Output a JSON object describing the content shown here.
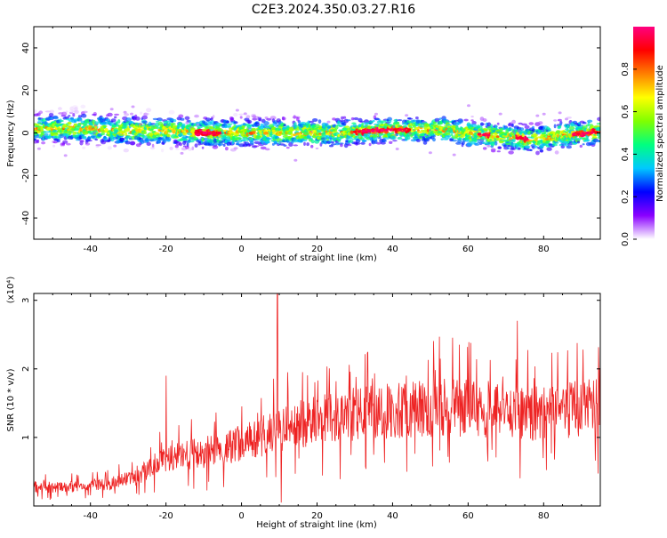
{
  "figure": {
    "title": "C2E3.2024.350.03.27.R16"
  },
  "chart_data": [
    {
      "type": "heatmap",
      "xlabel": "Height of straight line (km)",
      "ylabel": "Frequency (Hz)",
      "xlim": [
        -55,
        95
      ],
      "ylim": [
        -50,
        50
      ],
      "x_ticks": [
        "-40",
        "-20",
        "0",
        "20",
        "40",
        "60",
        "80"
      ],
      "y_ticks": [
        "-40",
        "-20",
        "0",
        "20",
        "40"
      ],
      "colorbar": {
        "label": "Normalized spectral amplitude",
        "range": [
          0,
          1
        ],
        "ticks": [
          "0.0",
          "0.2",
          "0.4",
          "0.6",
          "0.8"
        ],
        "colors": [
          "#ffffff",
          "#8a00ff",
          "#0000ff",
          "#00c8ff",
          "#00ff80",
          "#80ff00",
          "#ffff00",
          "#ff8000",
          "#ff0000",
          "#ff0080"
        ]
      },
      "ridge_center_hz": [
        [
          -55,
          2
        ],
        [
          -40,
          2
        ],
        [
          -30,
          1
        ],
        [
          -20,
          1
        ],
        [
          -10,
          0
        ],
        [
          0,
          0
        ],
        [
          10,
          0
        ],
        [
          20,
          0
        ],
        [
          30,
          0.5
        ],
        [
          40,
          1.5
        ],
        [
          55,
          1.5
        ],
        [
          60,
          0
        ],
        [
          70,
          -2
        ],
        [
          78,
          -3
        ],
        [
          85,
          -1
        ],
        [
          95,
          0.5
        ]
      ],
      "spread_hz": 5,
      "strong_regions_km": [
        [
          -12,
          -5
        ],
        [
          30,
          45
        ],
        [
          63,
          66
        ],
        [
          73,
          76
        ],
        [
          88,
          95
        ]
      ]
    },
    {
      "type": "line",
      "xlabel": "Height of straight line (km)",
      "ylabel": "SNR (10 * v/v)",
      "y_multiplier": "(x10⁴)",
      "xlim": [
        -55,
        95
      ],
      "ylim": [
        0,
        3.1
      ],
      "x_ticks": [
        "-40",
        "-20",
        "0",
        "20",
        "40",
        "60",
        "80"
      ],
      "y_ticks": [
        "1",
        "2",
        "3"
      ],
      "color": "#ee2222",
      "envelope": [
        [
          -55,
          0.3
        ],
        [
          -45,
          0.3
        ],
        [
          -35,
          0.35
        ],
        [
          -28,
          0.45
        ],
        [
          -22,
          0.7
        ],
        [
          -15,
          0.8
        ],
        [
          -5,
          0.9
        ],
        [
          0,
          1.0
        ],
        [
          5,
          1.1
        ],
        [
          10,
          1.2
        ],
        [
          20,
          1.35
        ],
        [
          30,
          1.45
        ],
        [
          40,
          1.5
        ],
        [
          50,
          1.55
        ],
        [
          60,
          1.55
        ],
        [
          70,
          1.5
        ],
        [
          80,
          1.45
        ],
        [
          90,
          1.55
        ],
        [
          95,
          1.55
        ]
      ],
      "peaks": [
        [
          9.5,
          3.1
        ],
        [
          73,
          2.7
        ],
        [
          -20,
          1.9
        ],
        [
          10.5,
          0.05
        ]
      ]
    }
  ]
}
